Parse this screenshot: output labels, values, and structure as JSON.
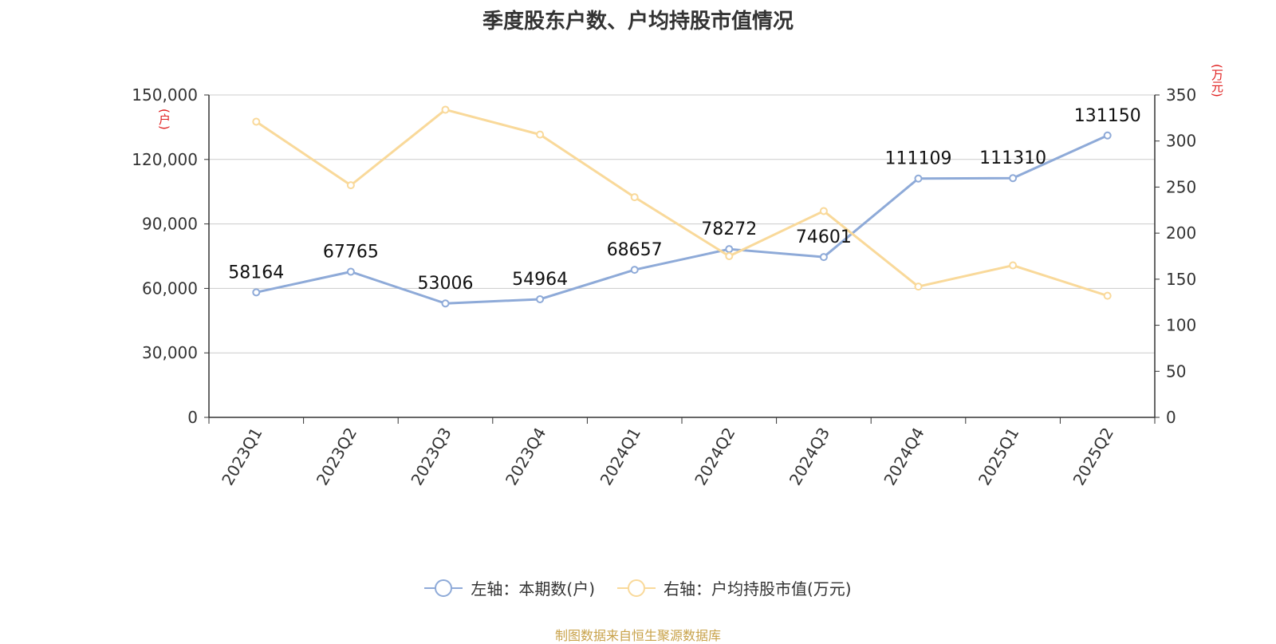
{
  "source_text": "制图数据来自恒生聚源数据库",
  "chart_data": {
    "type": "line",
    "title": "季度股东户数、户均持股市值情况",
    "categories": [
      "2023Q1",
      "2023Q2",
      "2023Q3",
      "2023Q4",
      "2024Q1",
      "2024Q2",
      "2024Q3",
      "2024Q4",
      "2025Q1",
      "2025Q2"
    ],
    "y_left": {
      "unit": "(户)",
      "ylim": [
        0,
        150000
      ],
      "ticks": [
        0,
        30000,
        60000,
        90000,
        120000,
        150000
      ],
      "tick_labels": [
        "0",
        "30,000",
        "60,000",
        "90,000",
        "120,000",
        "150,000"
      ]
    },
    "y_right": {
      "unit": "(万元)",
      "ylim": [
        0,
        350
      ],
      "ticks": [
        0,
        50,
        100,
        150,
        200,
        250,
        300,
        350
      ],
      "tick_labels": [
        "0",
        "50",
        "100",
        "150",
        "200",
        "250",
        "300",
        "350"
      ]
    },
    "series": [
      {
        "name": "左轴：本期数(户)",
        "axis": "left",
        "color": "#8eaad8",
        "values": [
          58164,
          67765,
          53006,
          54964,
          68657,
          78272,
          74601,
          111109,
          111310,
          131150
        ],
        "data_labels": [
          "58164",
          "67765",
          "53006",
          "54964",
          "68657",
          "78272",
          "74601",
          "111109",
          "111310",
          "131150"
        ]
      },
      {
        "name": "右轴：户均持股市值(万元)",
        "axis": "right",
        "color": "#f9d99a",
        "values": [
          321,
          252,
          334,
          307,
          239,
          175,
          224,
          142,
          165,
          132
        ]
      }
    ],
    "grid": true,
    "legend_position": "bottom"
  }
}
